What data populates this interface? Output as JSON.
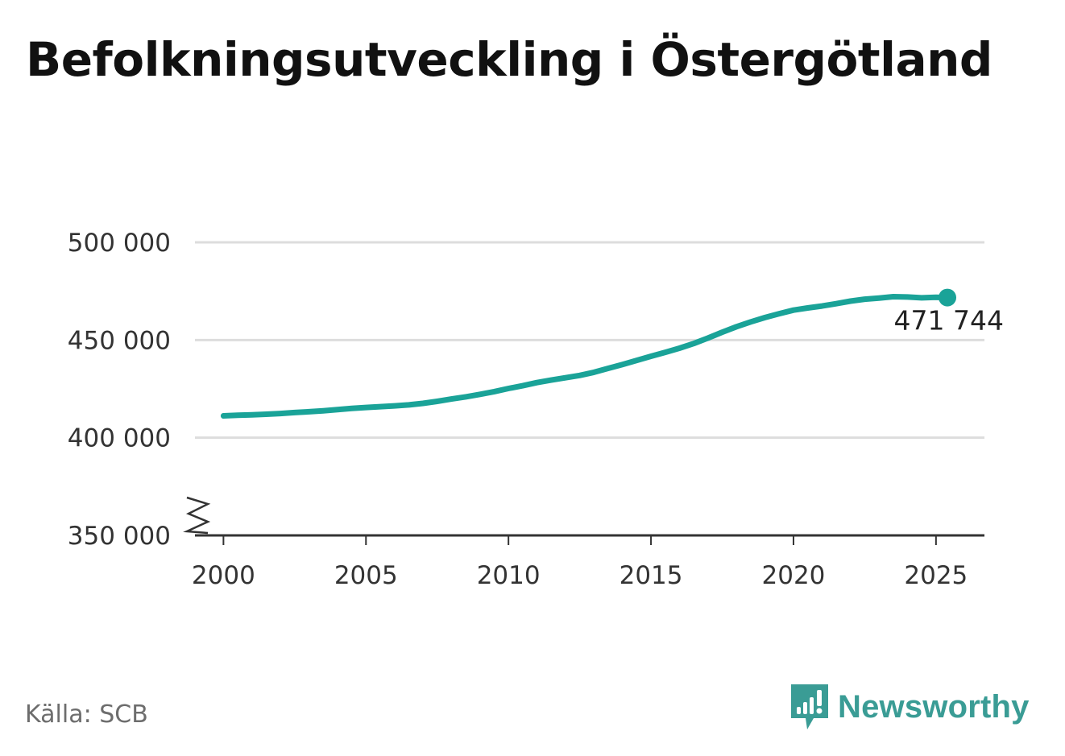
{
  "title": "Befolkningsutveckling i Östergötland",
  "source": "Källa: SCB",
  "brand": "Newsworthy",
  "colors": {
    "line": "#1aa398",
    "grid": "#dddddd",
    "axis": "#333333",
    "brand": "#3a9c95"
  },
  "chart_data": {
    "type": "line",
    "title": "Befolkningsutveckling i Östergötland",
    "xlabel": "",
    "ylabel": "",
    "x_ticks": [
      "2000",
      "2005",
      "2010",
      "2015",
      "2020",
      "2025"
    ],
    "y_ticks": [
      "350 000",
      "400 000",
      "450 000",
      "500 000"
    ],
    "xlim": [
      1999.0,
      2026.7
    ],
    "ylim": [
      350000,
      500000
    ],
    "y_axis_break": true,
    "grid": true,
    "end_label": "471 744",
    "series": [
      {
        "x": [
          2000.0,
          2000.5,
          2001.0,
          2001.5,
          2002.0,
          2002.5,
          2003.0,
          2003.5,
          2004.0,
          2004.5,
          2005.0,
          2005.5,
          2006.0,
          2006.5,
          2007.0,
          2007.5,
          2008.0,
          2008.5,
          2009.0,
          2009.5,
          2010.0,
          2010.5,
          2011.0,
          2011.5,
          2012.0,
          2012.5,
          2013.0,
          2013.5,
          2014.0,
          2014.5,
          2015.0,
          2015.5,
          2016.0,
          2016.5,
          2017.0,
          2017.5,
          2018.0,
          2018.5,
          2019.0,
          2019.5,
          2020.0,
          2020.5,
          2021.0,
          2021.5,
          2022.0,
          2022.5,
          2023.0,
          2023.5,
          2024.0,
          2024.5,
          2025.0,
          2025.4
        ],
        "y": [
          411200,
          411500,
          411700,
          412000,
          412400,
          412900,
          413300,
          413800,
          414400,
          415000,
          415500,
          415900,
          416300,
          416800,
          417600,
          418600,
          419800,
          420900,
          422200,
          423600,
          425200,
          426600,
          428200,
          429500,
          430700,
          431900,
          433500,
          435500,
          437500,
          439600,
          441700,
          443700,
          445800,
          448200,
          451000,
          454000,
          456800,
          459300,
          461500,
          463500,
          465300,
          466400,
          467400,
          468600,
          469900,
          470900,
          471500,
          472200,
          472000,
          471600,
          471900,
          471744
        ]
      }
    ]
  }
}
